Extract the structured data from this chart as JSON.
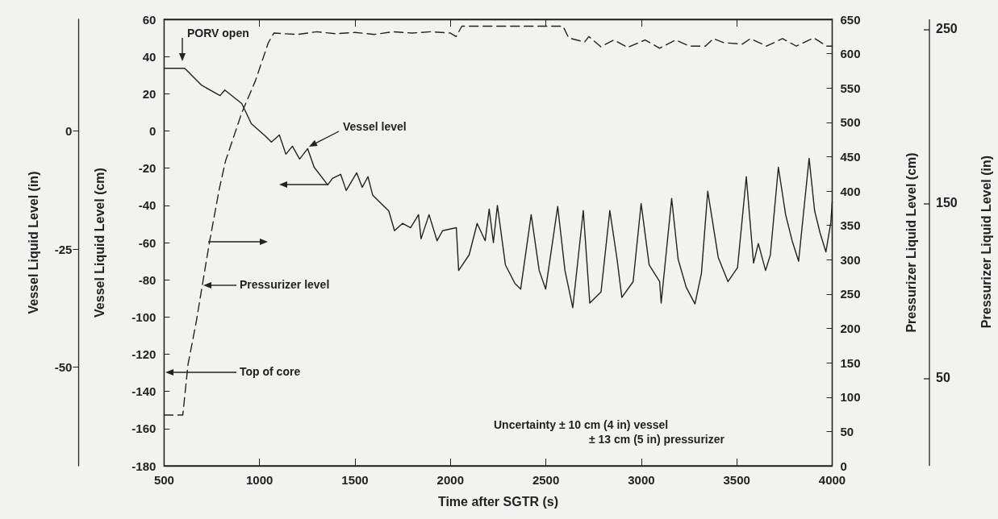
{
  "chart_data": {
    "type": "line",
    "xlabel": "Time after SGTR (s)",
    "ylabel": "Vessel Liquid Level (cm)",
    "y2label": "Pressurizer Liquid Level (cm)",
    "y3label": "Vessel Liquid Level (in)",
    "xlim": [
      500,
      4000
    ],
    "xticks": [
      500,
      1000,
      1500,
      2000,
      2500,
      3000,
      3500,
      4000
    ],
    "ylim": [
      -180,
      60
    ],
    "yticks": [
      -180,
      -160,
      -140,
      -120,
      -100,
      -80,
      -60,
      -40,
      -20,
      0,
      20,
      40,
      60
    ],
    "y2lim": [
      0,
      650
    ],
    "y2ticks": [
      0,
      50,
      100,
      150,
      200,
      250,
      300,
      350,
      400,
      450,
      500,
      550,
      600,
      650
    ],
    "y3lim": [
      -70.87,
      23.62
    ],
    "y3ticks": [
      -50,
      -25,
      0
    ],
    "marker": "none",
    "grid": false,
    "series": [
      {
        "color": "#222222",
        "line_style": "solid",
        "x": [
          500,
          608,
          696,
          793,
          818,
          907,
          957,
          1029,
          1062,
          1104,
          1138,
          1172,
          1210,
          1252,
          1286,
          1357,
          1382,
          1425,
          1454,
          1509,
          1538,
          1568,
          1593,
          1677,
          1707,
          1749,
          1791,
          1833,
          1846,
          1888,
          1930,
          1959,
          2031,
          2043,
          2098,
          2140,
          2182,
          2203,
          2225,
          2246,
          2288,
          2338,
          2368,
          2423,
          2465,
          2499,
          2562,
          2600,
          2641,
          2696,
          2730,
          2789,
          2835,
          2873,
          2898,
          2957,
          2999,
          3041,
          3096,
          3104,
          3159,
          3193,
          3235,
          3281,
          3315,
          3348,
          3403,
          3454,
          3504,
          3550,
          3588,
          3613,
          3651,
          3676,
          3718,
          3756,
          3790,
          3824,
          3879,
          3908,
          3937,
          3967,
          3993,
          4000
        ],
        "values": [
          33.7,
          33.7,
          24.6,
          19,
          22,
          14.7,
          3.9,
          -2.6,
          -6,
          -2.2,
          -12.5,
          -8.2,
          -15.1,
          -9.5,
          -19.5,
          -29,
          -25.5,
          -23.3,
          -32,
          -22.5,
          -30.3,
          -24.6,
          -34.6,
          -43,
          -53.6,
          -49.7,
          -52,
          -45,
          -58,
          -45,
          -59,
          -53.6,
          -52,
          -75,
          -66.6,
          -49.7,
          -59,
          -42,
          -60,
          -40,
          -72,
          -82,
          -85,
          -45,
          -75,
          -85,
          -40.6,
          -75,
          -95,
          -42.8,
          -92.5,
          -86.5,
          -42.8,
          -69,
          -89.5,
          -81,
          -39,
          -72,
          -81,
          -92.5,
          -36.3,
          -69,
          -84,
          -93,
          -76.5,
          -32.4,
          -68,
          -81,
          -73.5,
          -24.6,
          -71,
          -60.5,
          -75,
          -66.6,
          -19.5,
          -45,
          -59,
          -70,
          -14.7,
          -43,
          -55,
          -65,
          -49,
          -38
        ]
      },
      {
        "color": "#222222",
        "line_style": "dashed",
        "axis": "y2",
        "x": [
          500,
          598,
          625,
          668,
          705,
          738,
          789,
          822,
          907,
          979,
          1046,
          1075,
          1200,
          1300,
          1400,
          1500,
          1600,
          1700,
          1800,
          1900,
          2000,
          2030,
          2060,
          2590,
          2619,
          2703,
          2725,
          2788,
          2856,
          2928,
          3020,
          3096,
          3180,
          3252,
          3336,
          3378,
          3432,
          3530,
          3572,
          3656,
          3740,
          3812,
          3904,
          3971,
          4000
        ],
        "values": [
          74,
          74,
          147,
          209,
          271,
          326,
          403,
          444,
          514,
          561,
          616,
          630,
          628,
          632,
          629,
          631,
          628,
          632,
          630,
          632,
          630,
          625,
          640,
          640,
          623,
          617,
          625,
          610,
          620,
          609,
          620,
          608,
          620,
          611,
          611,
          622,
          616,
          614,
          622,
          611,
          622,
          611,
          623,
          611,
          611
        ]
      }
    ],
    "annotations": [
      "PORV open",
      "Vessel level",
      "Pressurizer level",
      "Top of core",
      "Uncertainty ± 10 cm (4 in) vessel",
      "± 13 cm (5 in) pressurizer",
      "Pressurizer Liquid Level (in)",
      "50",
      "150",
      "250"
    ]
  }
}
